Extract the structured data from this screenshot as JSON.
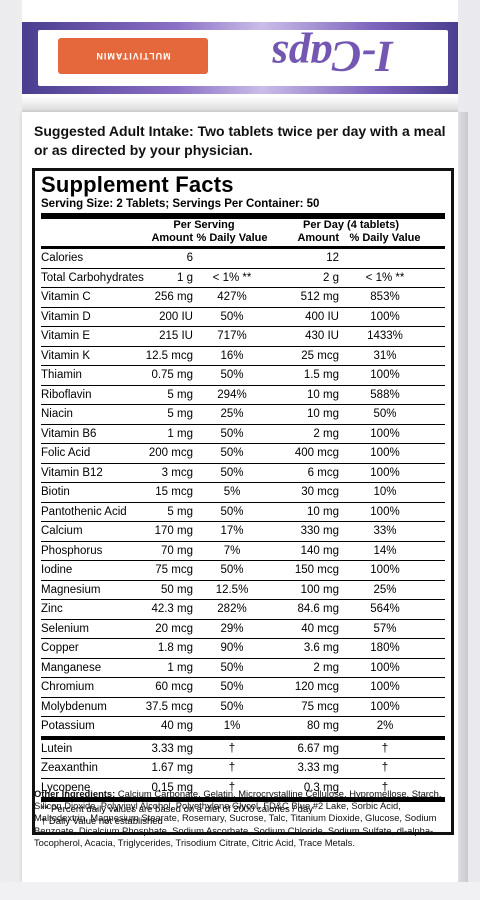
{
  "box_top": {
    "orange_label": "MULTIVITAMIN",
    "brand": "I-Caps"
  },
  "intake": "Suggested Adult Intake: Two tablets twice per day with a meal or as directed by your physician.",
  "facts": {
    "title": "Supplement Facts",
    "serving": "Serving Size: 2 Tablets; Servings Per Container: 50",
    "header_top": {
      "group1": "Per Serving",
      "group2": "Per Day (4 tablets)"
    },
    "header_bottom": {
      "amount1": "Amount",
      "dv1": "% Daily Value",
      "amount2": "Amount",
      "dv2": "% Daily Value"
    },
    "rows": [
      {
        "name": "Calories",
        "a1": "6",
        "d1": "",
        "a2": "12",
        "d2": ""
      },
      {
        "name": "Total Carbohydrates",
        "a1": "1 g",
        "d1": "< 1% **",
        "a2": "2 g",
        "d2": "< 1% **"
      },
      {
        "name": "Vitamin C",
        "a1": "256 mg",
        "d1": "427%",
        "a2": "512 mg",
        "d2": "853%"
      },
      {
        "name": "Vitamin D",
        "a1": "200 IU",
        "d1": "50%",
        "a2": "400 IU",
        "d2": "100%"
      },
      {
        "name": "Vitamin E",
        "a1": "215 IU",
        "d1": "717%",
        "a2": "430 IU",
        "d2": "1433%"
      },
      {
        "name": "Vitamin K",
        "a1": "12.5 mcg",
        "d1": "16%",
        "a2": "25 mcg",
        "d2": "31%"
      },
      {
        "name": "Thiamin",
        "a1": "0.75 mg",
        "d1": "50%",
        "a2": "1.5 mg",
        "d2": "100%"
      },
      {
        "name": "Riboflavin",
        "a1": "5 mg",
        "d1": "294%",
        "a2": "10 mg",
        "d2": "588%"
      },
      {
        "name": "Niacin",
        "a1": "5 mg",
        "d1": "25%",
        "a2": "10 mg",
        "d2": "50%"
      },
      {
        "name": "Vitamin B6",
        "a1": "1 mg",
        "d1": "50%",
        "a2": "2 mg",
        "d2": "100%"
      },
      {
        "name": "Folic Acid",
        "a1": "200 mcg",
        "d1": "50%",
        "a2": "400 mcg",
        "d2": "100%"
      },
      {
        "name": "Vitamin B12",
        "a1": "3 mcg",
        "d1": "50%",
        "a2": "6 mcg",
        "d2": "100%"
      },
      {
        "name": "Biotin",
        "a1": "15 mcg",
        "d1": "5%",
        "a2": "30 mcg",
        "d2": "10%"
      },
      {
        "name": "Pantothenic Acid",
        "a1": "5 mg",
        "d1": "50%",
        "a2": "10 mg",
        "d2": "100%"
      },
      {
        "name": "Calcium",
        "a1": "170 mg",
        "d1": "17%",
        "a2": "330 mg",
        "d2": "33%"
      },
      {
        "name": "Phosphorus",
        "a1": "70 mg",
        "d1": "7%",
        "a2": "140 mg",
        "d2": "14%"
      },
      {
        "name": "Iodine",
        "a1": "75 mcg",
        "d1": "50%",
        "a2": "150 mcg",
        "d2": "100%"
      },
      {
        "name": "Magnesium",
        "a1": "50 mg",
        "d1": "12.5%",
        "a2": "100 mg",
        "d2": "25%"
      },
      {
        "name": "Zinc",
        "a1": "42.3 mg",
        "d1": "282%",
        "a2": "84.6 mg",
        "d2": "564%"
      },
      {
        "name": "Selenium",
        "a1": "20 mcg",
        "d1": "29%",
        "a2": "40 mcg",
        "d2": "57%"
      },
      {
        "name": "Copper",
        "a1": "1.8 mg",
        "d1": "90%",
        "a2": "3.6 mg",
        "d2": "180%"
      },
      {
        "name": "Manganese",
        "a1": "1 mg",
        "d1": "50%",
        "a2": "2 mg",
        "d2": "100%"
      },
      {
        "name": "Chromium",
        "a1": "60 mcg",
        "d1": "50%",
        "a2": "120 mcg",
        "d2": "100%"
      },
      {
        "name": "Molybdenum",
        "a1": "37.5 mcg",
        "d1": "50%",
        "a2": "75 mcg",
        "d2": "100%"
      },
      {
        "name": "Potassium",
        "a1": "40 mg",
        "d1": "1%",
        "a2": "80 mg",
        "d2": "2%"
      },
      {
        "name": "Lutein",
        "a1": "3.33 mg",
        "d1": "†",
        "a2": "6.67 mg",
        "d2": "†"
      },
      {
        "name": "Zeaxanthin",
        "a1": "1.67 mg",
        "d1": "†",
        "a2": "3.33 mg",
        "d2": "†"
      },
      {
        "name": "Lycopene",
        "a1": "0.15 mg",
        "d1": "†",
        "a2": "0.3 mg",
        "d2": "†"
      }
    ],
    "footnote1": "** Percent daily values are based on a diet of 2000 calories / day",
    "footnote2": "† Daily Value not established"
  },
  "other": {
    "label": "Other Ingredients:",
    "text": "Calcium Carbonate, Gelatin, Microcrystalline Cellulose, Hypromellose, Starch, Silicon Dioxide, Polyvinyl Alcohol, Polyethylene Glycol, FD&C Blue #2 Lake, Sorbic Acid, Maltodextrin, Magnesium Stearate, Rosemary, Sucrose, Talc, Titanium Dioxide, Glucose, Sodium Benzoate, Dicalcium Phosphate, Sodium Ascorbate, Sodium Chloride, Sodium Sulfate, dl-alpha-Tocopherol, Acacia, Triglycerides, Trisodium Citrate, Citric Acid, Trace Metals."
  }
}
